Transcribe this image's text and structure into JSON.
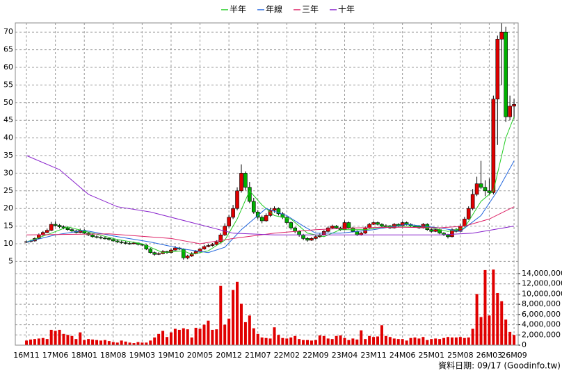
{
  "chart_data": {
    "type": "candlestick",
    "legend": [
      "半年",
      "年線",
      "三年",
      "十年"
    ],
    "footer": "資料日期: 09/17 (Goodinfo.tw)",
    "up_color": "#e00000",
    "down_color": "#00b000",
    "volume_color": "#e00000",
    "grid": true,
    "xlim": [
      -2.7,
      119
    ],
    "xticks": [
      {
        "value": 0,
        "label": "16M11"
      },
      {
        "value": 7,
        "label": "17M06"
      },
      {
        "value": 14,
        "label": "18M01"
      },
      {
        "value": 21,
        "label": "18M08"
      },
      {
        "value": 28,
        "label": "19M03"
      },
      {
        "value": 35,
        "label": "19M10"
      },
      {
        "value": 42,
        "label": "20M05"
      },
      {
        "value": 49,
        "label": "20M12"
      },
      {
        "value": 56,
        "label": "21M07"
      },
      {
        "value": 63,
        "label": "22M02"
      },
      {
        "value": 70,
        "label": "22M09"
      },
      {
        "value": 77,
        "label": "23M04"
      },
      {
        "value": 84,
        "label": "23M11"
      },
      {
        "value": 91,
        "label": "24M06"
      },
      {
        "value": 98,
        "label": "25M01"
      },
      {
        "value": 105,
        "label": "25M08"
      },
      {
        "value": 112,
        "label": "26M03"
      },
      {
        "value": 118,
        "label": "26M09"
      }
    ],
    "ylim": [
      3.7,
      72.6
    ],
    "yticks": [
      5,
      10,
      15,
      20,
      25,
      30,
      35,
      40,
      45,
      50,
      55,
      60,
      65,
      70
    ],
    "y2lim": [
      0,
      15500000
    ],
    "y2ticks": [
      {
        "value": 0,
        "label": "0"
      },
      {
        "value": 2000000,
        "label": "2,000,000"
      },
      {
        "value": 4000000,
        "label": "4,000,000"
      },
      {
        "value": 6000000,
        "label": "6,000,000"
      },
      {
        "value": 8000000,
        "label": "8,000,000"
      },
      {
        "value": 10000000,
        "label": "10,000,000"
      },
      {
        "value": 12000000,
        "label": "12,000,000"
      },
      {
        "value": 14000000,
        "label": "14,000,000"
      }
    ],
    "candles": [
      [
        10.4,
        10.9,
        10.2,
        10.6
      ],
      [
        10.6,
        11.1,
        10.4,
        10.8
      ],
      [
        10.8,
        11.8,
        10.6,
        11.5
      ],
      [
        11.5,
        12.9,
        11.3,
        12.5
      ],
      [
        12.5,
        13.6,
        12.2,
        13.2
      ],
      [
        13.2,
        14.3,
        13.0,
        13.8
      ],
      [
        13.8,
        16.2,
        13.6,
        15.5
      ],
      [
        15.5,
        16.4,
        14.8,
        15.2
      ],
      [
        15.2,
        15.6,
        14.4,
        14.8
      ],
      [
        14.8,
        15.2,
        14.1,
        14.5
      ],
      [
        14.5,
        14.9,
        13.7,
        14.0
      ],
      [
        14.0,
        14.4,
        13.3,
        13.6
      ],
      [
        13.6,
        14.0,
        12.9,
        13.2
      ],
      [
        13.2,
        14.3,
        13.0,
        13.8
      ],
      [
        13.8,
        14.1,
        12.7,
        13.0
      ],
      [
        13.0,
        13.3,
        12.2,
        12.5
      ],
      [
        12.5,
        12.9,
        11.7,
        12.0
      ],
      [
        12.0,
        12.4,
        11.5,
        11.8
      ],
      [
        11.8,
        12.2,
        11.3,
        11.6
      ],
      [
        11.6,
        12.0,
        11.2,
        11.5
      ],
      [
        11.5,
        11.8,
        10.9,
        11.2
      ],
      [
        11.2,
        11.5,
        10.5,
        10.8
      ],
      [
        10.8,
        11.2,
        10.2,
        10.5
      ],
      [
        10.5,
        10.9,
        10.0,
        10.3
      ],
      [
        10.3,
        10.7,
        9.8,
        10.1
      ],
      [
        10.1,
        10.5,
        9.7,
        10.0
      ],
      [
        10.0,
        10.6,
        9.8,
        10.2
      ],
      [
        10.2,
        10.4,
        9.5,
        9.8
      ],
      [
        9.8,
        10.1,
        9.3,
        9.6
      ],
      [
        9.6,
        9.8,
        8.2,
        8.5
      ],
      [
        8.5,
        8.8,
        7.2,
        7.5
      ],
      [
        7.5,
        7.8,
        6.6,
        7.0
      ],
      [
        7.0,
        7.6,
        6.8,
        7.2
      ],
      [
        7.2,
        8.2,
        7.0,
        7.8
      ],
      [
        7.8,
        8.0,
        7.1,
        7.5
      ],
      [
        7.5,
        8.6,
        7.3,
        8.2
      ],
      [
        8.2,
        9.4,
        8.0,
        8.8
      ],
      [
        8.8,
        9.1,
        8.2,
        8.5
      ],
      [
        8.5,
        8.7,
        5.5,
        6.0
      ],
      [
        6.0,
        6.9,
        5.6,
        6.5
      ],
      [
        6.5,
        7.6,
        6.3,
        7.2
      ],
      [
        7.2,
        8.2,
        7.0,
        7.8
      ],
      [
        7.8,
        8.9,
        7.6,
        8.5
      ],
      [
        8.5,
        9.6,
        8.3,
        9.2
      ],
      [
        9.2,
        9.9,
        9.0,
        9.5
      ],
      [
        9.5,
        10.2,
        9.2,
        9.8
      ],
      [
        9.8,
        11.0,
        9.6,
        10.5
      ],
      [
        10.5,
        13.0,
        10.3,
        12.5
      ],
      [
        12.5,
        15.8,
        12.2,
        15.0
      ],
      [
        15.0,
        18.2,
        14.6,
        17.5
      ],
      [
        17.5,
        21.0,
        17.0,
        20.0
      ],
      [
        20.0,
        26.0,
        19.5,
        25.0
      ],
      [
        25.0,
        32.5,
        24.5,
        30.0
      ],
      [
        30.0,
        30.5,
        25.2,
        26.0
      ],
      [
        26.0,
        27.5,
        21.5,
        22.0
      ],
      [
        22.0,
        23.0,
        18.5,
        19.0
      ],
      [
        19.0,
        19.5,
        17.0,
        17.5
      ],
      [
        17.5,
        18.0,
        15.8,
        16.5
      ],
      [
        16.5,
        18.6,
        16.2,
        18.0
      ],
      [
        18.0,
        20.2,
        17.6,
        19.5
      ],
      [
        19.5,
        20.6,
        18.8,
        20.0
      ],
      [
        20.0,
        20.3,
        18.0,
        18.5
      ],
      [
        18.5,
        19.0,
        17.0,
        17.5
      ],
      [
        17.5,
        17.8,
        15.5,
        16.0
      ],
      [
        16.0,
        16.3,
        14.0,
        14.5
      ],
      [
        14.5,
        14.8,
        13.0,
        13.5
      ],
      [
        13.5,
        13.8,
        12.0,
        12.5
      ],
      [
        12.5,
        12.8,
        11.0,
        11.5
      ],
      [
        11.5,
        11.9,
        10.6,
        11.0
      ],
      [
        11.0,
        11.9,
        10.8,
        11.5
      ],
      [
        11.5,
        12.4,
        11.2,
        12.0
      ],
      [
        12.0,
        12.9,
        11.7,
        12.5
      ],
      [
        12.5,
        13.9,
        12.3,
        13.5
      ],
      [
        13.5,
        14.9,
        13.2,
        14.5
      ],
      [
        14.5,
        15.4,
        14.2,
        15.0
      ],
      [
        15.0,
        15.3,
        14.2,
        14.5
      ],
      [
        14.5,
        14.8,
        13.7,
        14.0
      ],
      [
        14.0,
        16.6,
        13.8,
        16.0
      ],
      [
        16.0,
        16.3,
        14.2,
        14.5
      ],
      [
        14.5,
        14.8,
        13.2,
        13.5
      ],
      [
        13.5,
        13.8,
        12.2,
        12.5
      ],
      [
        12.5,
        13.4,
        12.3,
        13.0
      ],
      [
        13.0,
        14.9,
        12.8,
        14.5
      ],
      [
        14.5,
        15.9,
        14.3,
        15.5
      ],
      [
        15.5,
        16.4,
        15.3,
        16.0
      ],
      [
        16.0,
        16.3,
        15.2,
        15.5
      ],
      [
        15.5,
        15.8,
        14.7,
        15.0
      ],
      [
        15.0,
        15.5,
        14.7,
        15.1
      ],
      [
        15.1,
        15.3,
        14.2,
        14.5
      ],
      [
        14.5,
        15.9,
        14.3,
        15.5
      ],
      [
        15.5,
        15.8,
        14.7,
        15.0
      ],
      [
        15.0,
        16.4,
        14.8,
        16.0
      ],
      [
        16.0,
        16.3,
        15.2,
        15.5
      ],
      [
        15.5,
        15.8,
        14.7,
        15.0
      ],
      [
        15.0,
        15.4,
        14.7,
        14.9
      ],
      [
        14.9,
        15.3,
        14.2,
        14.5
      ],
      [
        14.5,
        15.9,
        14.3,
        15.5
      ],
      [
        15.5,
        15.8,
        13.7,
        14.0
      ],
      [
        14.0,
        14.3,
        13.2,
        13.5
      ],
      [
        13.5,
        14.3,
        13.3,
        14.0
      ],
      [
        14.0,
        14.3,
        12.7,
        13.0
      ],
      [
        13.0,
        13.3,
        12.2,
        12.5
      ],
      [
        12.5,
        12.8,
        11.5,
        12.0
      ],
      [
        12.0,
        14.4,
        11.8,
        14.0
      ],
      [
        14.0,
        14.5,
        13.2,
        13.5
      ],
      [
        13.5,
        15.5,
        13.3,
        15.0
      ],
      [
        15.0,
        17.6,
        14.8,
        17.0
      ],
      [
        17.0,
        20.6,
        16.8,
        20.0
      ],
      [
        20.0,
        25.5,
        19.5,
        24.0
      ],
      [
        24.0,
        29.0,
        23.5,
        27.0
      ],
      [
        27.0,
        33.5,
        25.5,
        26.0
      ],
      [
        26.0,
        28.0,
        23.5,
        25.0
      ],
      [
        25.0,
        28.5,
        23.8,
        24.5
      ],
      [
        24.5,
        52.0,
        24.0,
        51.0
      ],
      [
        51.0,
        69.0,
        38.0,
        68.0
      ],
      [
        68.0,
        72.5,
        55.0,
        70.0
      ],
      [
        70.0,
        71.5,
        44.5,
        46.0
      ],
      [
        46.0,
        52.0,
        45.0,
        49.0
      ],
      [
        49.0,
        51.0,
        45.5,
        49.5
      ]
    ],
    "volume": [
      900000,
      1100000,
      1200000,
      1300000,
      1400000,
      1200000,
      3000000,
      2800000,
      3000000,
      2200000,
      2000000,
      1800000,
      1200000,
      2500000,
      1000000,
      1200000,
      1100000,
      1000000,
      900000,
      1000000,
      800000,
      600000,
      500000,
      900000,
      700000,
      500000,
      400000,
      600000,
      500000,
      500000,
      900000,
      1500000,
      2200000,
      2800000,
      1600000,
      2500000,
      3200000,
      3000000,
      3300000,
      3100000,
      1500000,
      3400000,
      3200000,
      4000000,
      4800000,
      3000000,
      3100000,
      11600000,
      4000000,
      5200000,
      10800000,
      12400000,
      8100000,
      4500000,
      5800000,
      3300000,
      2200000,
      1500000,
      1400000,
      1300000,
      3500000,
      2000000,
      1400000,
      1300000,
      1500000,
      1800000,
      1200000,
      1000000,
      1000000,
      900000,
      1000000,
      1900000,
      1800000,
      1300000,
      1200000,
      1800000,
      1900000,
      1400000,
      1000000,
      1300000,
      1100000,
      2900000,
      1200000,
      1800000,
      1600000,
      1700000,
      3900000,
      1800000,
      1600000,
      1300000,
      1200000,
      1200000,
      900000,
      1400000,
      1500000,
      1300000,
      1600000,
      1000000,
      1200000,
      1300000,
      1200000,
      1400000,
      1600000,
      1500000,
      1500000,
      1600000,
      1400000,
      1500000,
      3200000,
      10000000,
      5500000,
      14700000,
      5800000,
      14800000,
      10200000,
      8600000,
      5000000,
      2600000,
      2000000
    ],
    "series": [
      {
        "name": "半年",
        "color": "#22cc22",
        "x": [
          0,
          6,
          10,
          16,
          22,
          28,
          33,
          38,
          40,
          44,
          48,
          51,
          54,
          57,
          60,
          64,
          68,
          72,
          76,
          82,
          88,
          96,
          102,
          106,
          110,
          113,
          116,
          118
        ],
        "values": [
          10.5,
          13,
          14.8,
          13,
          11.2,
          10,
          7.5,
          8,
          7,
          8,
          11,
          17,
          25,
          21,
          18,
          17,
          13,
          12,
          14,
          14,
          15,
          15,
          13.5,
          14.5,
          22,
          25,
          40,
          46
        ]
      },
      {
        "name": "年線",
        "color": "#2266dd",
        "x": [
          0,
          7,
          14,
          22,
          30,
          38,
          44,
          48,
          52,
          58,
          63,
          67,
          70,
          76,
          84,
          92,
          100,
          105,
          110,
          114,
          118
        ],
        "values": [
          10.5,
          12.5,
          13.8,
          12,
          10.5,
          8.5,
          7.5,
          9,
          14,
          20,
          18,
          15,
          13,
          13,
          14,
          15.5,
          14.5,
          13.5,
          18,
          25,
          33.5
        ]
      },
      {
        "name": "三年",
        "color": "#dd2266",
        "x": [
          0,
          20,
          35,
          42,
          50,
          60,
          70,
          80,
          90,
          100,
          106,
          112,
          118
        ],
        "values": [
          12.5,
          12.8,
          11.5,
          10,
          11.5,
          13,
          14,
          14.5,
          14.7,
          14.5,
          15,
          17,
          20.5
        ]
      },
      {
        "name": "十年",
        "color": "#8822cc",
        "x": [
          0,
          8,
          15,
          22,
          30,
          40,
          50,
          60,
          80,
          100,
          108,
          118
        ],
        "values": [
          35,
          31,
          24,
          20.5,
          19,
          16,
          13,
          12.5,
          12.5,
          12.5,
          13,
          15
        ]
      }
    ]
  }
}
